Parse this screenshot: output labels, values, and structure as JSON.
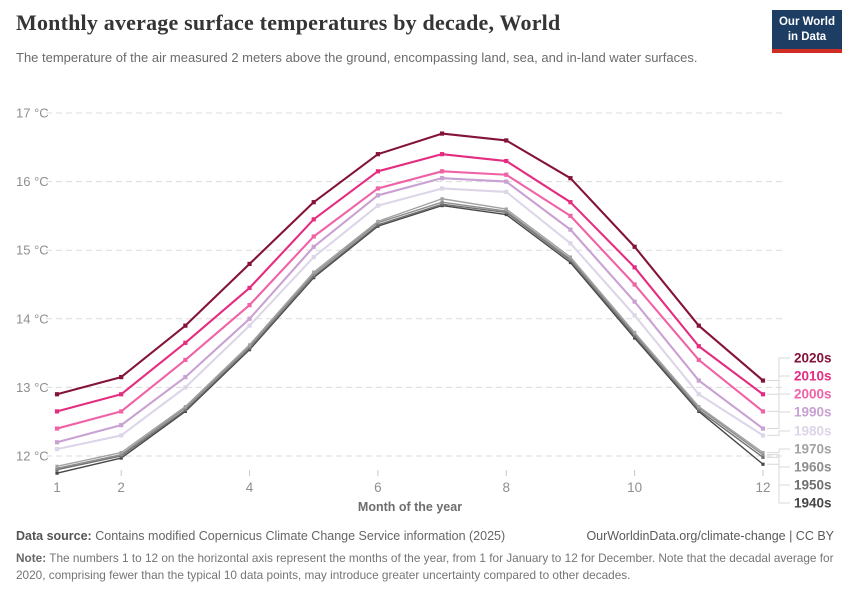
{
  "header": {
    "title": "Monthly average surface temperatures by decade, World",
    "subtitle": "The temperature of the air measured 2 meters above the ground, encompassing land, sea, and in-land water surfaces.",
    "logo": {
      "line1": "Our World",
      "line2": "in Data",
      "bg_color": "#1d3d63",
      "bar_color": "#cf2d23"
    }
  },
  "chart_data": {
    "type": "line",
    "title": "Monthly average surface temperatures by decade, World",
    "xlabel": "Month of the year",
    "ylabel": "",
    "x": [
      1,
      2,
      3,
      4,
      5,
      6,
      7,
      8,
      9,
      10,
      11,
      12
    ],
    "x_ticks": [
      1,
      2,
      4,
      6,
      8,
      10,
      12
    ],
    "y_ticks": [
      12,
      13,
      14,
      15,
      16,
      17
    ],
    "y_tick_suffix": " °C",
    "ylim": [
      11.6,
      17.2
    ],
    "grid": "horizontal-dashed",
    "legend_position": "right-edge-labels",
    "series": [
      {
        "name": "2020s",
        "color": "#841339",
        "values": [
          12.9,
          13.15,
          13.9,
          14.8,
          15.7,
          16.4,
          16.7,
          16.6,
          16.05,
          15.05,
          13.9,
          13.1
        ]
      },
      {
        "name": "2010s",
        "color": "#e42c80",
        "values": [
          12.65,
          12.9,
          13.65,
          14.45,
          15.45,
          16.15,
          16.4,
          16.3,
          15.7,
          14.75,
          13.6,
          12.9
        ]
      },
      {
        "name": "2000s",
        "color": "#ef63a6",
        "values": [
          12.4,
          12.65,
          13.4,
          14.2,
          15.2,
          15.9,
          16.15,
          16.1,
          15.5,
          14.5,
          13.4,
          12.65
        ]
      },
      {
        "name": "1990s",
        "color": "#c9a1d3",
        "values": [
          12.2,
          12.45,
          13.15,
          14.0,
          15.05,
          15.8,
          16.05,
          16.0,
          15.3,
          14.25,
          13.1,
          12.4
        ]
      },
      {
        "name": "1980s",
        "color": "#ddd5e8",
        "values": [
          12.1,
          12.3,
          13.0,
          13.9,
          14.9,
          15.65,
          15.9,
          15.85,
          15.1,
          14.05,
          12.9,
          12.3
        ]
      },
      {
        "name": "1970s",
        "color": "#a3a3a3",
        "values": [
          11.85,
          12.05,
          12.72,
          13.62,
          14.68,
          15.42,
          15.75,
          15.6,
          14.9,
          13.8,
          12.72,
          12.05
        ]
      },
      {
        "name": "1960s",
        "color": "#8d8d8d",
        "values": [
          11.82,
          12.02,
          12.7,
          13.6,
          14.65,
          15.4,
          15.7,
          15.57,
          14.87,
          13.78,
          12.7,
          12.02
        ]
      },
      {
        "name": "1950s",
        "color": "#6f6f6f",
        "values": [
          11.8,
          12.0,
          12.67,
          13.57,
          14.62,
          15.37,
          15.67,
          15.55,
          14.85,
          13.75,
          12.67,
          11.98
        ]
      },
      {
        "name": "1940s",
        "color": "#474747",
        "values": [
          11.75,
          11.97,
          12.65,
          13.55,
          14.6,
          15.35,
          15.65,
          15.52,
          14.82,
          13.72,
          12.65,
          11.88
        ]
      }
    ]
  },
  "footer": {
    "data_source_label": "Data source:",
    "data_source_text": "Contains modified Copernicus Climate Change Service information (2025)",
    "link": "OurWorldinData.org/climate-change | CC BY",
    "note_label": "Note:",
    "note_text": "The numbers 1 to 12 on the horizontal axis represent the months of the year, from 1 for January to 12 for December. Note that the decadal average for 2020, comprising fewer than the typical 10 data points, may introduce greater uncertainty compared to other decades."
  }
}
